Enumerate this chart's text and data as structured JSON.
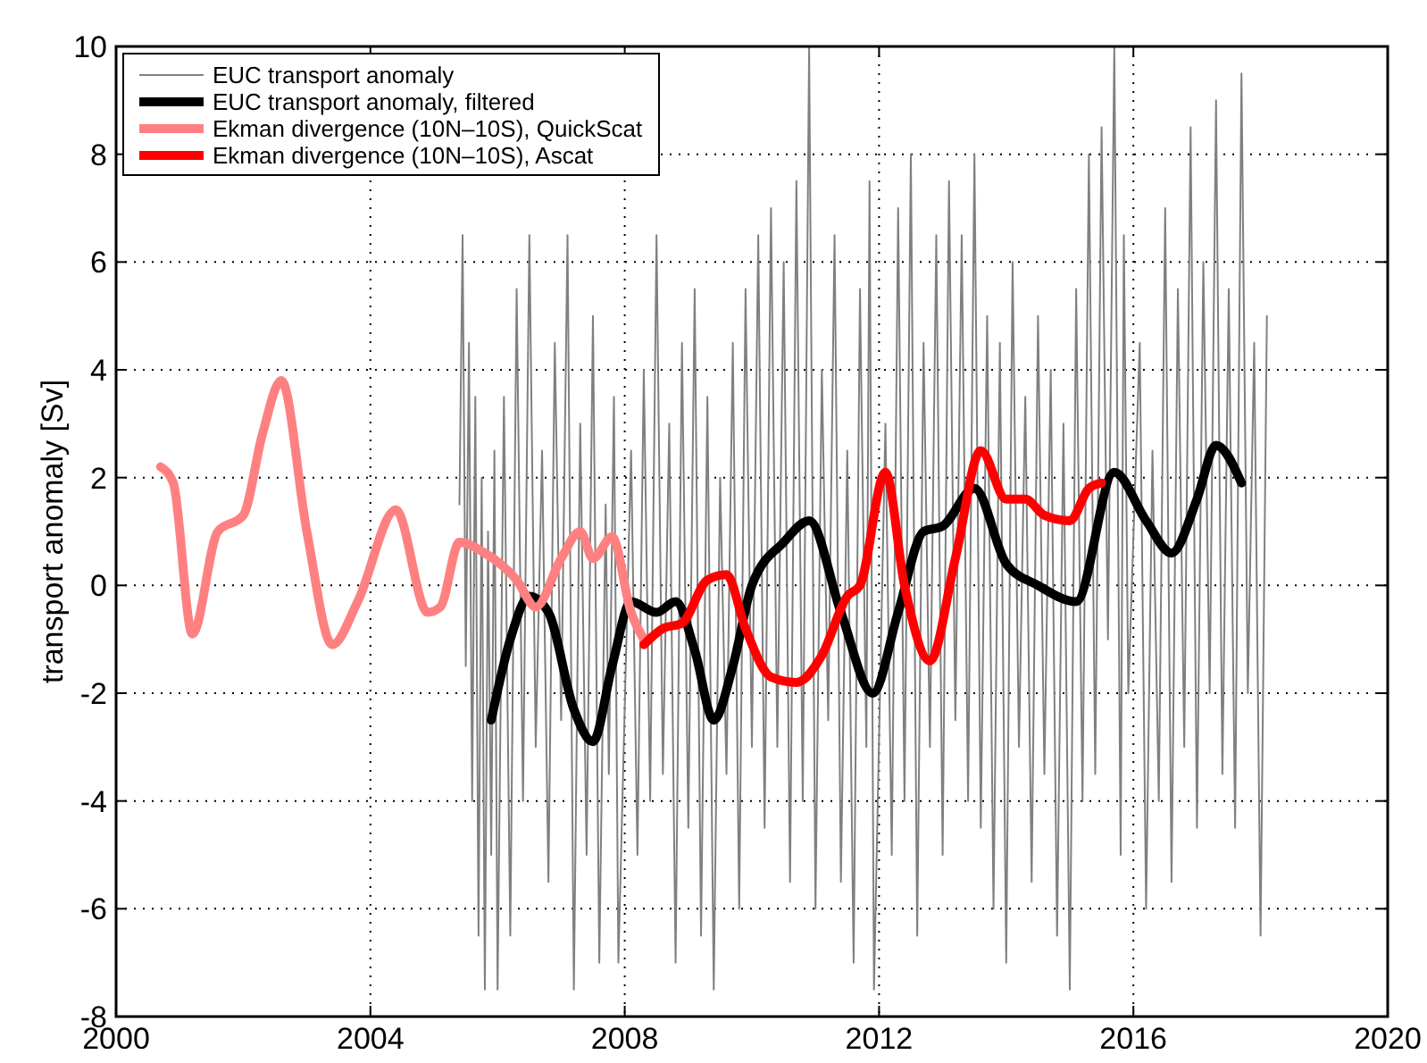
{
  "chart_data": {
    "type": "line",
    "ylabel": "transport anomaly [Sv]",
    "xlim": [
      2000,
      2020
    ],
    "xticks": [
      2000,
      2004,
      2008,
      2012,
      2016,
      2020
    ],
    "ylim": [
      -8,
      10
    ],
    "yticks": [
      -8,
      -6,
      -4,
      -2,
      0,
      2,
      4,
      6,
      8,
      10
    ],
    "grid": true,
    "legend": "top left",
    "line_style": "solid",
    "series": [
      {
        "name": "EUC transport anomaly",
        "color": "#808080",
        "x": [
          2005.4,
          2005.45,
          2005.5,
          2005.55,
          2005.6,
          2005.65,
          2005.7,
          2005.75,
          2005.8,
          2005.85,
          2005.9,
          2005.95,
          2006.0,
          2006.1,
          2006.2,
          2006.3,
          2006.4,
          2006.5,
          2006.6,
          2006.7,
          2006.8,
          2006.9,
          2007.0,
          2007.1,
          2007.2,
          2007.3,
          2007.4,
          2007.5,
          2007.6,
          2007.7,
          2007.75,
          2007.83,
          2007.9,
          2008.1,
          2008.2,
          2008.3,
          2008.4,
          2008.5,
          2008.6,
          2008.7,
          2008.8,
          2008.9,
          2009.0,
          2009.1,
          2009.2,
          2009.3,
          2009.4,
          2009.5,
          2009.6,
          2009.7,
          2009.8,
          2009.9,
          2010.0,
          2010.1,
          2010.2,
          2010.3,
          2010.4,
          2010.5,
          2010.6,
          2010.7,
          2010.8,
          2010.9,
          2011.0,
          2011.1,
          2011.2,
          2011.3,
          2011.4,
          2011.5,
          2011.6,
          2011.7,
          2011.8,
          2011.85,
          2011.92,
          2012.1,
          2012.2,
          2012.3,
          2012.4,
          2012.5,
          2012.6,
          2012.7,
          2012.8,
          2012.9,
          2013.0,
          2013.1,
          2013.2,
          2013.3,
          2013.4,
          2013.5,
          2013.6,
          2013.7,
          2013.8,
          2013.9,
          2014.0,
          2014.1,
          2014.2,
          2014.3,
          2014.4,
          2014.5,
          2014.6,
          2014.7,
          2014.8,
          2014.9,
          2015.0,
          2015.1,
          2015.2,
          2015.3,
          2015.4,
          2015.5,
          2015.6,
          2015.7,
          2015.8,
          2015.85,
          2015.92,
          2016.1,
          2016.2,
          2016.3,
          2016.4,
          2016.5,
          2016.6,
          2016.7,
          2016.8,
          2016.9,
          2017.0,
          2017.1,
          2017.2,
          2017.3,
          2017.4,
          2017.5,
          2017.6,
          2017.7,
          2017.8,
          2017.9,
          2018.0,
          2018.1
        ],
        "values": [
          1.5,
          6.5,
          -1.5,
          4.5,
          -4,
          3.5,
          -6.5,
          2,
          -7.5,
          1,
          -5,
          2.5,
          -7.5,
          3.5,
          -6.5,
          5.5,
          -4,
          6.5,
          -3,
          2.5,
          -5.5,
          4.5,
          -2.5,
          6.5,
          -7.5,
          3,
          -5,
          5,
          -7,
          1.5,
          -3.5,
          3.5,
          -7,
          2.5,
          -5,
          4,
          -4,
          6.5,
          -3.5,
          3,
          -7,
          4.5,
          -4.5,
          5.5,
          -6.5,
          3.5,
          -7.5,
          2,
          -3.5,
          4.5,
          -6,
          5.5,
          -3,
          6.5,
          -4.5,
          7,
          -3,
          6,
          -5.5,
          7.5,
          -4,
          10,
          -6,
          4,
          -2.5,
          6.5,
          -5.5,
          2.5,
          -7,
          5.5,
          -3,
          7.5,
          -7.5,
          3,
          -5,
          7,
          -4,
          8,
          -6.5,
          4.5,
          -3,
          6.5,
          -5,
          7.5,
          -2.5,
          6.5,
          -4,
          8,
          -4.5,
          5,
          -6,
          4.5,
          -7,
          6,
          -3,
          3.5,
          -5.5,
          5,
          -3.5,
          4,
          -6.5,
          3,
          -7.5,
          5.5,
          -4,
          8,
          -3.5,
          8.5,
          -1,
          10,
          -5,
          6.5,
          -2,
          4.5,
          -6,
          2.5,
          -4,
          7,
          -5.5,
          5.5,
          -3,
          8.5,
          -4.5,
          6,
          -2,
          9,
          -3.5,
          5.5,
          -4.5,
          9.5,
          -2,
          4.5,
          -6.5,
          5
        ]
      },
      {
        "name": "EUC transport anomaly, filtered",
        "color": "#000000",
        "x": [
          2005.9,
          2006.2,
          2006.5,
          2006.8,
          2007.2,
          2007.5,
          2007.8,
          2008.1,
          2008.5,
          2008.8,
          2009.1,
          2009.4,
          2009.7,
          2010.0,
          2010.5,
          2010.9,
          2011.4,
          2011.9,
          2012.3,
          2012.7,
          2013.0,
          2013.5,
          2014.0,
          2014.5,
          2015.1,
          2015.7,
          2016.2,
          2016.6,
          2017.0,
          2017.3,
          2017.7
        ],
        "values": [
          -2.5,
          -1,
          -0.2,
          -0.5,
          -2.3,
          -2.9,
          -1.5,
          -0.3,
          -0.5,
          -0.3,
          -1.2,
          -2.5,
          -1.5,
          0,
          0.8,
          1.2,
          -0.5,
          -2,
          -0.5,
          1,
          1.1,
          1.8,
          0.4,
          0,
          -0.3,
          2.1,
          1.2,
          0.6,
          1.6,
          2.6,
          1.9
        ]
      },
      {
        "name": "Ekman divergence (10N‒10S), QuickScat",
        "color": "#ff8080",
        "x": [
          2000.7,
          2000.9,
          2001.2,
          2001.6,
          2002.0,
          2002.3,
          2002.6,
          2003.0,
          2003.4,
          2003.8,
          2004.4,
          2004.9,
          2005.1,
          2005.4,
          2005.8,
          2006.3,
          2006.6,
          2007.0,
          2007.3,
          2007.5,
          2007.8,
          2008.1,
          2008.3
        ],
        "values": [
          2.2,
          1.9,
          -0.9,
          1,
          1.3,
          2.8,
          3.8,
          1,
          -1.1,
          -0.3,
          1.4,
          -0.5,
          -0.4,
          0.8,
          0.6,
          0.1,
          -0.4,
          0.5,
          1,
          0.5,
          0.9,
          -0.5,
          -1
        ]
      },
      {
        "name": "Ekman divergence (10N‒10S), Ascat",
        "color": "#ff0000",
        "x": [
          2008.3,
          2008.6,
          2008.9,
          2009.3,
          2009.6,
          2009.9,
          2010.3,
          2010.7,
          2011.1,
          2011.5,
          2011.7,
          2012.1,
          2012.4,
          2012.8,
          2013.2,
          2013.6,
          2014.0,
          2014.3,
          2014.6,
          2015.0,
          2015.3,
          2015.5
        ],
        "values": [
          -1.1,
          -0.8,
          -0.7,
          0.1,
          0.2,
          -0.8,
          -1.7,
          -1.8,
          -1.3,
          -0.2,
          0,
          2.1,
          0,
          -1.4,
          0.5,
          2.5,
          1.6,
          1.6,
          1.3,
          1.2,
          1.8,
          1.9
        ]
      }
    ]
  }
}
